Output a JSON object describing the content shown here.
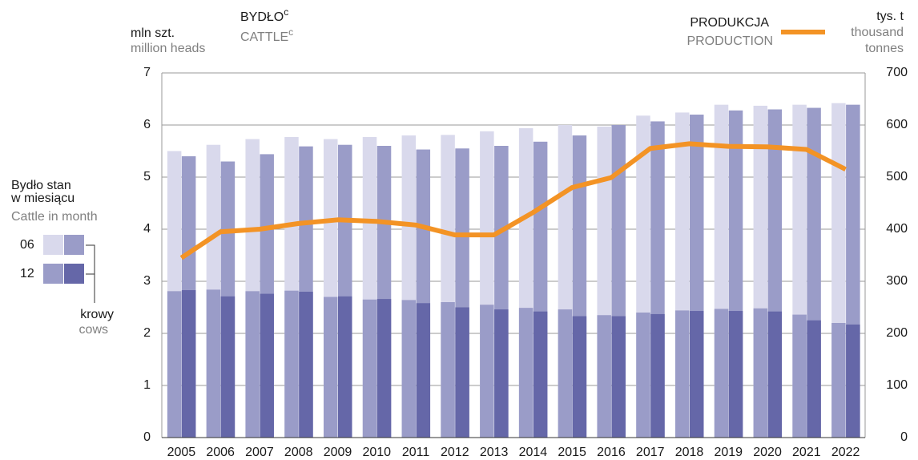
{
  "chart_data": {
    "type": "bar",
    "unit": "mln szt.",
    "unit_en": "million heads",
    "title": "BYDŁO",
    "title_sup": "c",
    "title_en": "CATTLE",
    "title_en_sup": "c",
    "y2_unit": "tys. t",
    "y2_unit_en": [
      "thousand",
      "tonnes"
    ],
    "legend": {
      "title": [
        "Bydło stan",
        "w miesiącu"
      ],
      "title_en": "Cattle in month",
      "rows": [
        "06",
        "12"
      ],
      "cows": "krowy",
      "cows_en": "cows"
    },
    "categories": [
      "2005",
      "2006",
      "2007",
      "2008",
      "2009",
      "2010",
      "2011",
      "2012",
      "2013",
      "2014",
      "2015",
      "2016",
      "2017",
      "2018",
      "2019",
      "2020",
      "2021",
      "2022"
    ],
    "series": [
      {
        "color": "#d9d9ec",
        "values": [
          5.5,
          5.62,
          5.73,
          5.77,
          5.73,
          5.77,
          5.8,
          5.81,
          5.88,
          5.94,
          6.0,
          5.97,
          6.18,
          6.24,
          6.39,
          6.37,
          6.39,
          6.42
        ]
      },
      {
        "color": "#9a9cc8",
        "values": [
          2.81,
          2.84,
          2.81,
          2.82,
          2.7,
          2.65,
          2.64,
          2.6,
          2.55,
          2.49,
          2.46,
          2.35,
          2.4,
          2.44,
          2.47,
          2.48,
          2.36,
          2.2
        ]
      },
      {
        "color": "#9a9cc8",
        "values": [
          5.4,
          5.3,
          5.44,
          5.59,
          5.62,
          5.6,
          5.53,
          5.55,
          5.6,
          5.68,
          5.8,
          6.0,
          6.07,
          6.2,
          6.28,
          6.3,
          6.33,
          6.39
        ]
      },
      {
        "color": "#6567a8",
        "values": [
          2.83,
          2.71,
          2.76,
          2.8,
          2.71,
          2.66,
          2.58,
          2.5,
          2.46,
          2.42,
          2.33,
          2.33,
          2.37,
          2.43,
          2.43,
          2.42,
          2.25,
          2.17
        ]
      }
    ],
    "production": {
      "name": "PRODUKCJA",
      "name_en": "PRODUCTION",
      "color": "#f39325",
      "axis": "y2",
      "values": [
        345,
        395,
        400,
        411,
        418,
        415,
        408,
        389,
        389,
        432,
        480,
        499,
        555,
        564,
        559,
        558,
        553,
        515
      ]
    },
    "ylim": [
      0,
      7
    ],
    "yticks": [
      0,
      1,
      2,
      3,
      4,
      5,
      6,
      7
    ],
    "y2lim": [
      0,
      700
    ],
    "y2ticks": [
      0,
      100,
      200,
      300,
      400,
      500,
      600,
      700
    ],
    "grid": true
  }
}
